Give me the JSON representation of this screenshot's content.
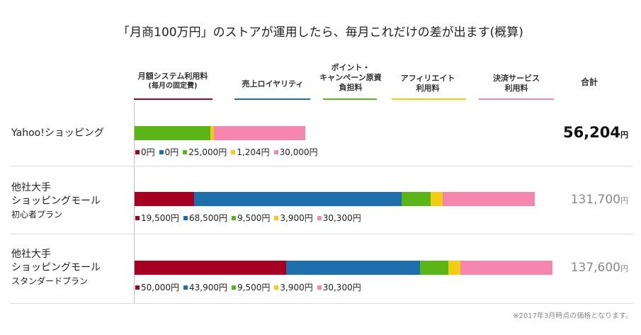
{
  "title": "「月商100万円」のストアが運用したら、毎月これだけの差が出ます(概算)",
  "total_header": "合計",
  "note": "※2017年3月時点の価格となります。",
  "yen_unit": "円",
  "categories": [
    {
      "line1": "月額システム利用料",
      "line2": "(毎月の固定費)",
      "color": "#a50021"
    },
    {
      "line1": "売上ロイヤリティ",
      "line2": "",
      "color": "#1f6fad"
    },
    {
      "line1": "ポイント・",
      "line2": "キャンペーン原資",
      "line3": "負担料",
      "color": "#5cb517"
    },
    {
      "line1": "アフィリエイト",
      "line2": "利用料",
      "color": "#f2cc13"
    },
    {
      "line1": "決済サービス",
      "line2": "利用料",
      "color": "#f586ae"
    }
  ],
  "chart_data": {
    "type": "bar",
    "orientation": "horizontal",
    "stacked": true,
    "title": "「月商100万円」のストアが運用したら、毎月これだけの差が出ます(概算)",
    "series_names": [
      "月額システム利用料(毎月の固定費)",
      "売上ロイヤリティ",
      "ポイント・キャンペーン原資負担料",
      "アフィリエイト利用料",
      "決済サービス利用料"
    ],
    "colors": [
      "#a50021",
      "#1f6fad",
      "#5cb517",
      "#f2cc13",
      "#f586ae"
    ],
    "xlim": [
      0,
      137600
    ],
    "rows": [
      {
        "name": [
          "Yahoo!ショッピング"
        ],
        "values": [
          0,
          0,
          25000,
          1204,
          30000
        ],
        "labels": [
          "0円",
          "0円",
          "25,000円",
          "1,204円",
          "30,000円"
        ],
        "total": "56,204",
        "highlight": true
      },
      {
        "name": [
          "他社大手",
          "ショッピングモール",
          "初心者プラン"
        ],
        "values": [
          19500,
          68500,
          9500,
          3900,
          30300
        ],
        "labels": [
          "19,500円",
          "68,500円",
          "9,500円",
          "3,900円",
          "30,300円"
        ],
        "total": "131,700",
        "highlight": false
      },
      {
        "name": [
          "他社大手",
          "ショッピングモール",
          "スタンダードプラン"
        ],
        "values": [
          50000,
          43900,
          9500,
          3900,
          30300
        ],
        "labels": [
          "50,000円",
          "43,900円",
          "9,500円",
          "3,900円",
          "30,300円"
        ],
        "total": "137,600",
        "highlight": false
      }
    ]
  }
}
